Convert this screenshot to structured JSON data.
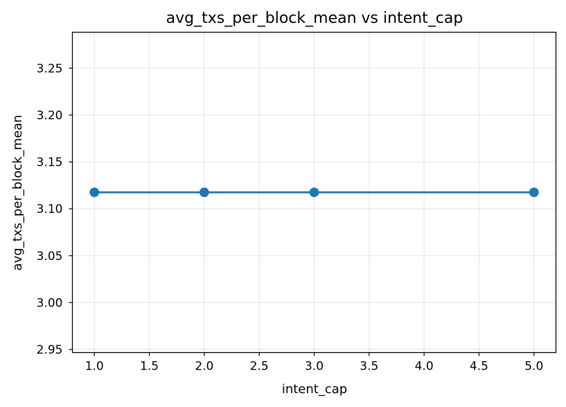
{
  "chart_data": {
    "type": "line",
    "title": "avg_txs_per_block_mean vs intent_cap",
    "xlabel": "intent_cap",
    "ylabel": "avg_txs_per_block_mean",
    "x": [
      1.0,
      2.0,
      3.0,
      5.0
    ],
    "series": [
      {
        "values": [
          3.1176,
          3.1176,
          3.1176,
          3.1176
        ],
        "color": "#1f77b4",
        "marker": "circle"
      }
    ],
    "xlim": [
      0.8,
      5.2
    ],
    "ylim": [
      2.9467,
      3.2883
    ],
    "xticks": [
      1.0,
      1.5,
      2.0,
      2.5,
      3.0,
      3.5,
      4.0,
      4.5,
      5.0
    ],
    "xtick_labels": [
      "1.0",
      "1.5",
      "2.0",
      "2.5",
      "3.0",
      "3.5",
      "4.0",
      "4.5",
      "5.0"
    ],
    "yticks": [
      2.95,
      3.0,
      3.05,
      3.1,
      3.15,
      3.2,
      3.25
    ],
    "ytick_labels": [
      "2.95",
      "3.00",
      "3.05",
      "3.10",
      "3.15",
      "3.20",
      "3.25"
    ],
    "grid": true,
    "legend": false
  }
}
